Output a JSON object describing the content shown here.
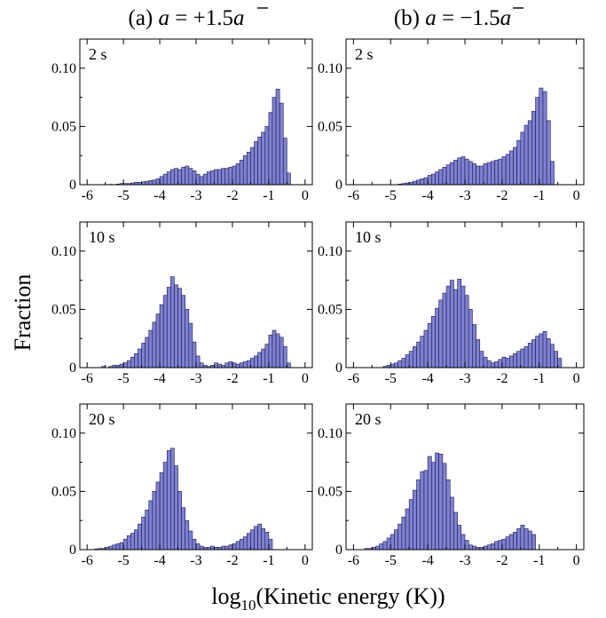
{
  "figure": {
    "column_titles": {
      "a_prefix": "(a) ",
      "a_var": "a",
      "a_eq": " = +1.5",
      "a_abar": "a",
      "b_prefix": "(b) ",
      "b_var": "a",
      "b_eq": " = −1.5",
      "b_abar": "a"
    },
    "ylabel": "Fraction",
    "xlabel_log": "log",
    "xlabel_sub": "10",
    "xlabel_rest": "(Kinetic energy (K))",
    "colors": {
      "bar_fill": "#7f81d4",
      "bar_stroke": "#1a1a40",
      "frame": "#000000"
    }
  },
  "chart_data": [
    {
      "type": "bar",
      "panel": "a",
      "time_label": "2 s",
      "xlim": [
        -6.2,
        0.2
      ],
      "ylim": [
        0,
        0.125
      ],
      "xticks": [
        -6,
        -5,
        -4,
        -3,
        -2,
        -1,
        0
      ],
      "yticks": [
        0,
        0.05,
        0.1
      ],
      "yticklabels": [
        "0",
        "0.05",
        "0.10"
      ],
      "bin_start": -5.5,
      "bin_width": 0.1,
      "values": [
        0,
        0.0003,
        0,
        0.0005,
        0.001,
        0.001,
        0.001,
        0.0015,
        0.002,
        0.002,
        0.0025,
        0.003,
        0.0035,
        0.004,
        0.005,
        0.007,
        0.009,
        0.011,
        0.013,
        0.014,
        0.013,
        0.015,
        0.016,
        0.014,
        0.012,
        0.009,
        0.007,
        0.009,
        0.011,
        0.012,
        0.013,
        0.013,
        0.014,
        0.014,
        0.015,
        0.016,
        0.018,
        0.021,
        0.025,
        0.028,
        0.032,
        0.037,
        0.041,
        0.045,
        0.05,
        0.062,
        0.075,
        0.082,
        0.07,
        0.04,
        0.01
      ]
    },
    {
      "type": "bar",
      "panel": "b",
      "time_label": "2 s",
      "xlim": [
        -6.2,
        0.2
      ],
      "ylim": [
        0,
        0.125
      ],
      "xticks": [
        -6,
        -5,
        -4,
        -3,
        -2,
        -1,
        0
      ],
      "yticks": [
        0,
        0.05,
        0.1
      ],
      "yticklabels": [
        "0",
        "0.05",
        "0.10"
      ],
      "bin_start": -4.8,
      "bin_width": 0.1,
      "values": [
        0.0005,
        0.001,
        0.0015,
        0.002,
        0.003,
        0.004,
        0.005,
        0.006,
        0.008,
        0.009,
        0.011,
        0.013,
        0.015,
        0.017,
        0.019,
        0.021,
        0.023,
        0.024,
        0.022,
        0.02,
        0.018,
        0.016,
        0.016,
        0.018,
        0.019,
        0.02,
        0.021,
        0.022,
        0.024,
        0.026,
        0.029,
        0.032,
        0.038,
        0.045,
        0.051,
        0.055,
        0.063,
        0.075,
        0.083,
        0.08,
        0.055,
        0.02
      ]
    },
    {
      "type": "bar",
      "panel": "a",
      "time_label": "10 s",
      "xlim": [
        -6.2,
        0.2
      ],
      "ylim": [
        0,
        0.125
      ],
      "xticks": [
        -6,
        -5,
        -4,
        -3,
        -2,
        -1,
        0
      ],
      "yticks": [
        0,
        0.05,
        0.1
      ],
      "yticklabels": [
        "0",
        "0.05",
        "0.10"
      ],
      "bin_start": -5.6,
      "bin_width": 0.1,
      "values": [
        0.001,
        0,
        0.001,
        0.002,
        0.002,
        0.003,
        0.004,
        0.006,
        0.009,
        0.012,
        0.016,
        0.021,
        0.026,
        0.032,
        0.039,
        0.046,
        0.054,
        0.062,
        0.069,
        0.078,
        0.071,
        0.068,
        0.062,
        0.05,
        0.038,
        0.022,
        0.01,
        0.004,
        0.002,
        0.001,
        0.002,
        0.004,
        0.003,
        0.002,
        0.004,
        0.005,
        0.004,
        0.003,
        0.004,
        0.005,
        0.006,
        0.008,
        0.01,
        0.013,
        0.016,
        0.02,
        0.028,
        0.032,
        0.029,
        0.026,
        0.018,
        0.004
      ]
    },
    {
      "type": "bar",
      "panel": "b",
      "time_label": "10 s",
      "xlim": [
        -6.2,
        0.2
      ],
      "ylim": [
        0,
        0.125
      ],
      "xticks": [
        -6,
        -5,
        -4,
        -3,
        -2,
        -1,
        0
      ],
      "yticks": [
        0,
        0.05,
        0.1
      ],
      "yticklabels": [
        "0",
        "0.05",
        "0.10"
      ],
      "bin_start": -5.2,
      "bin_width": 0.1,
      "values": [
        0.001,
        0.002,
        0.003,
        0.004,
        0.006,
        0.008,
        0.011,
        0.014,
        0.018,
        0.022,
        0.027,
        0.032,
        0.038,
        0.044,
        0.051,
        0.058,
        0.064,
        0.07,
        0.075,
        0.067,
        0.076,
        0.07,
        0.062,
        0.05,
        0.037,
        0.024,
        0.014,
        0.009,
        0.006,
        0.004,
        0.005,
        0.007,
        0.009,
        0.008,
        0.01,
        0.012,
        0.014,
        0.016,
        0.018,
        0.021,
        0.024,
        0.027,
        0.029,
        0.031,
        0.025,
        0.02,
        0.014,
        0.008
      ]
    },
    {
      "type": "bar",
      "panel": "a",
      "time_label": "20 s",
      "xlim": [
        -6.2,
        0.2
      ],
      "ylim": [
        0,
        0.125
      ],
      "xticks": [
        -6,
        -5,
        -4,
        -3,
        -2,
        -1,
        0
      ],
      "yticks": [
        0,
        0.05,
        0.1
      ],
      "yticklabels": [
        "0",
        "0.05",
        "0.10"
      ],
      "bin_start": -5.8,
      "bin_width": 0.1,
      "values": [
        0.0005,
        0.001,
        0.001,
        0.002,
        0.003,
        0.004,
        0.005,
        0.006,
        0.009,
        0.012,
        0.014,
        0.017,
        0.022,
        0.028,
        0.034,
        0.042,
        0.05,
        0.058,
        0.066,
        0.075,
        0.085,
        0.087,
        0.072,
        0.05,
        0.036,
        0.025,
        0.016,
        0.009,
        0.005,
        0.003,
        0.002,
        0.002,
        0.003,
        0.002,
        0.002,
        0.003,
        0.003,
        0.004,
        0.005,
        0.007,
        0.009,
        0.011,
        0.014,
        0.017,
        0.02,
        0.022,
        0.018,
        0.015,
        0.009
      ]
    },
    {
      "type": "bar",
      "panel": "b",
      "time_label": "20 s",
      "xlim": [
        -6.2,
        0.2
      ],
      "ylim": [
        0,
        0.125
      ],
      "xticks": [
        -6,
        -5,
        -4,
        -3,
        -2,
        -1,
        0
      ],
      "yticks": [
        0,
        0.05,
        0.1
      ],
      "yticklabels": [
        "0",
        "0.05",
        "0.10"
      ],
      "bin_start": -5.7,
      "bin_width": 0.1,
      "values": [
        0.001,
        0.001,
        0.002,
        0.003,
        0.005,
        0.007,
        0.01,
        0.013,
        0.017,
        0.022,
        0.028,
        0.035,
        0.043,
        0.051,
        0.06,
        0.067,
        0.068,
        0.08,
        0.075,
        0.083,
        0.082,
        0.074,
        0.06,
        0.045,
        0.032,
        0.021,
        0.013,
        0.008,
        0.004,
        0.003,
        0.002,
        0.002,
        0.003,
        0.004,
        0.005,
        0.007,
        0.008,
        0.009,
        0.011,
        0.013,
        0.015,
        0.018,
        0.021,
        0.018,
        0.016,
        0.013
      ]
    }
  ]
}
